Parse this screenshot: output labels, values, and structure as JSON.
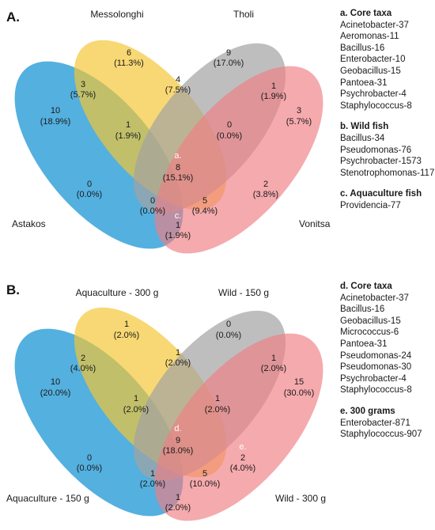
{
  "panelA": {
    "letter": "A.",
    "sets": {
      "astakos": "Astakos",
      "messolonghi": "Messolonghi",
      "tholi": "Tholi",
      "vonitsa": "Vonitsa"
    },
    "regions": [
      {
        "id": "astakos-only",
        "count": "10",
        "pct": "(18.9%)"
      },
      {
        "id": "messolonghi-only",
        "count": "6",
        "pct": "(11.3%)"
      },
      {
        "id": "tholi-only",
        "count": "9",
        "pct": "(17.0%)"
      },
      {
        "id": "vonitsa-only",
        "count": "3",
        "pct": "(5.7%)"
      },
      {
        "id": "astakos-messolonghi",
        "count": "3",
        "pct": "(5.7%)"
      },
      {
        "id": "messolonghi-tholi",
        "label": "b.",
        "count": "4",
        "pct": "(7.5%)"
      },
      {
        "id": "tholi-vonitsa",
        "count": "1",
        "pct": "(1.9%)"
      },
      {
        "id": "astakos-messolonghi-tholi",
        "count": "1",
        "pct": "(1.9%)"
      },
      {
        "id": "messolonghi-tholi-vonitsa",
        "count": "0",
        "pct": "(0.0%)"
      },
      {
        "id": "all-four",
        "label": "a.",
        "count": "8",
        "pct": "(15.1%)"
      },
      {
        "id": "astakos-tholi",
        "count": "0",
        "pct": "(0.0%)"
      },
      {
        "id": "messolonghi-vonitsa",
        "count": "2",
        "pct": "(3.8%)"
      },
      {
        "id": "astakos-tholi-vonitsa",
        "count": "0",
        "pct": "(0.0%)"
      },
      {
        "id": "astakos-messolonghi-vonitsa",
        "count": "5",
        "pct": "(9.4%)"
      },
      {
        "id": "astakos-vonitsa",
        "label": "c.",
        "count": "1",
        "pct": "(1.9%)"
      }
    ],
    "legend": [
      {
        "title": "a. Core taxa",
        "items": [
          "Acinetobacter-37",
          "Aeromonas-11",
          "Bacillus-16",
          "Enterobacter-10",
          "Geobacillus-15",
          "Pantoea-31",
          "Psychrobacter-4",
          "Staphylococcus-8"
        ]
      },
      {
        "title": "b. Wild fish",
        "items": [
          "Bacillus-34",
          "Pseudomonas-76",
          "Psychrobacter-1573",
          "Stenotrophomonas-117"
        ]
      },
      {
        "title": "c. Aquaculture fish",
        "items": [
          "Providencia-77"
        ]
      }
    ]
  },
  "panelB": {
    "letter": "B.",
    "sets": {
      "s1": "Aquaculture - 150 g",
      "s2": "Aquaculture - 300 g",
      "s3": "Wild - 150 g",
      "s4": "Wild - 300 g"
    },
    "regions": [
      {
        "id": "s1-only",
        "count": "10",
        "pct": "(20.0%)"
      },
      {
        "id": "s2-only",
        "count": "1",
        "pct": "(2.0%)"
      },
      {
        "id": "s3-only",
        "count": "0",
        "pct": "(0.0%)"
      },
      {
        "id": "s4-only",
        "count": "15",
        "pct": "(30.0%)"
      },
      {
        "id": "s1-s2",
        "count": "2",
        "pct": "(4.0%)"
      },
      {
        "id": "s2-s3",
        "count": "1",
        "pct": "(2.0%)"
      },
      {
        "id": "s3-s4",
        "count": "1",
        "pct": "(2.0%)"
      },
      {
        "id": "s1-s2-s3",
        "count": "1",
        "pct": "(2.0%)"
      },
      {
        "id": "s2-s3-s4",
        "count": "1",
        "pct": "(2.0%)"
      },
      {
        "id": "all-four",
        "label": "d.",
        "count": "9",
        "pct": "(18.0%)"
      },
      {
        "id": "s1-s3",
        "count": "0",
        "pct": "(0.0%)"
      },
      {
        "id": "s2-s4",
        "label": "e.",
        "count": "2",
        "pct": "(4.0%)"
      },
      {
        "id": "s1-s3-s4",
        "count": "1",
        "pct": "(2.0%)"
      },
      {
        "id": "s1-s2-s4",
        "count": "5",
        "pct": "(10.0%)"
      },
      {
        "id": "s1-s4",
        "count": "1",
        "pct": "(2.0%)"
      }
    ],
    "legend": [
      {
        "title": "d. Core taxa",
        "items": [
          "Acinetobacter-37",
          "Bacillus-16",
          "Geobacillus-15",
          "Micrococcus-6",
          "Pantoea-31",
          "Pseudomonas-24",
          "Pseudomonas-30",
          "Psychrobacter-4",
          "Staphylococcus-8"
        ]
      },
      {
        "title": "e. 300 grams",
        "items": [
          "Enterobacter-871",
          "Staphylococcus-907"
        ]
      }
    ]
  }
}
